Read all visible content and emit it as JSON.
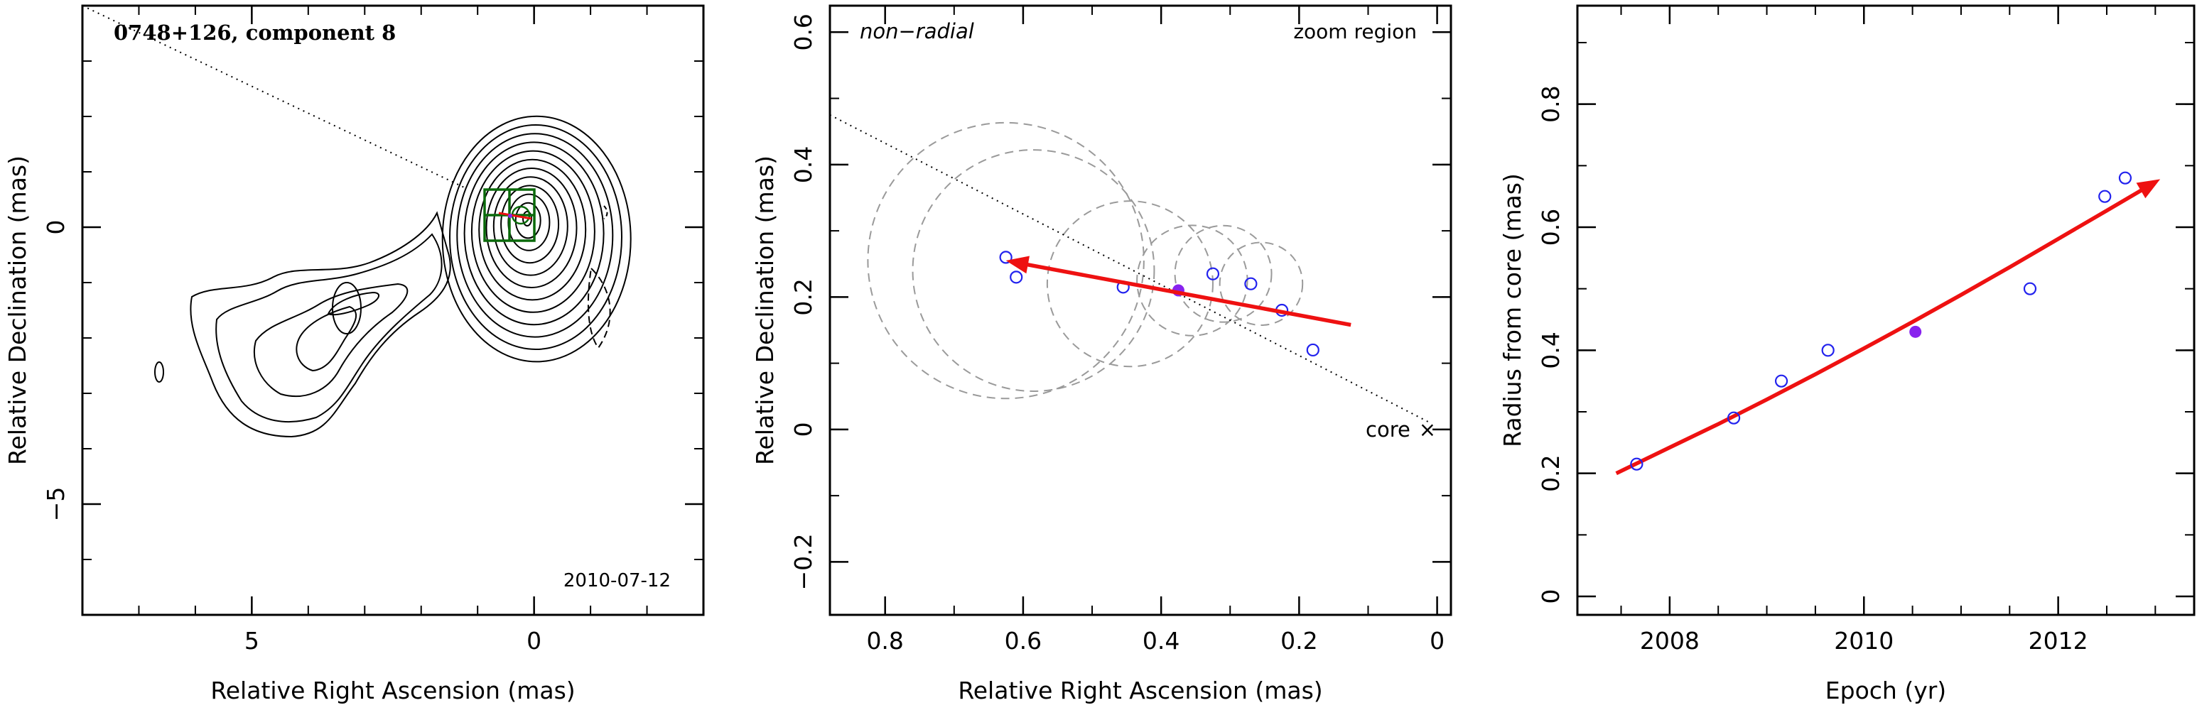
{
  "chart_data": [
    {
      "type": "scatter",
      "title": "0748+126, component 8",
      "date": "2010-07-12",
      "xlabel": "Relative Right Ascension (mas)",
      "ylabel": "Relative Declination (mas)",
      "xlim": [
        8,
        -3
      ],
      "ylim": [
        -7,
        4
      ],
      "xticks": [
        5,
        0
      ],
      "yticks": [
        0,
        -5
      ],
      "contour_map": true,
      "zoom_box_label": "zoom region",
      "direction_line": {
        "x": [
          8,
          1.2
        ],
        "y": [
          4,
          0.7
        ]
      }
    },
    {
      "type": "scatter",
      "title_left": "non−radial",
      "title_right": "zoom region",
      "xlabel": "Relative Right Ascension (mas)",
      "ylabel": "Relative Declination (mas)",
      "xlim": [
        0.88,
        -0.02
      ],
      "ylim": [
        -0.28,
        0.64
      ],
      "xticks": [
        0.8,
        0.6,
        0.4,
        0.2,
        0
      ],
      "yticks": [
        0.6,
        0.4,
        0.2,
        0,
        -0.2
      ],
      "core_label": "core",
      "core_marker": "×",
      "points": [
        {
          "x": 0.625,
          "y": 0.26
        },
        {
          "x": 0.61,
          "y": 0.23
        },
        {
          "x": 0.455,
          "y": 0.215
        },
        {
          "x": 0.325,
          "y": 0.235
        },
        {
          "x": 0.27,
          "y": 0.22
        },
        {
          "x": 0.225,
          "y": 0.18
        },
        {
          "x": 0.18,
          "y": 0.12
        }
      ],
      "highlight_point": {
        "x": 0.375,
        "y": 0.21
      },
      "arrow": {
        "from": [
          0.125,
          0.158
        ],
        "to": [
          0.625,
          0.255
        ]
      },
      "ellipses": [
        {
          "x": 0.625,
          "y": 0.255,
          "r": 0.2
        },
        {
          "x": 0.585,
          "y": 0.24,
          "r": 0.175
        },
        {
          "x": 0.445,
          "y": 0.22,
          "r": 0.12
        },
        {
          "x": 0.355,
          "y": 0.225,
          "r": 0.08
        },
        {
          "x": 0.31,
          "y": 0.235,
          "r": 0.07
        },
        {
          "x": 0.255,
          "y": 0.22,
          "r": 0.06
        }
      ],
      "direction_line": {
        "x": [
          0.88,
          0.01
        ],
        "y": [
          0.475,
          0.01
        ]
      }
    },
    {
      "type": "scatter",
      "xlabel": "Epoch (yr)",
      "ylabel": "Radius from core (mas)",
      "xlim": [
        2007.05,
        2013.4
      ],
      "ylim": [
        -0.03,
        0.96
      ],
      "xticks": [
        2008,
        2010,
        2012
      ],
      "yticks": [
        0,
        0.2,
        0.4,
        0.6,
        0.8
      ],
      "points": [
        {
          "x": 2007.66,
          "y": 0.215
        },
        {
          "x": 2008.66,
          "y": 0.29
        },
        {
          "x": 2009.15,
          "y": 0.35
        },
        {
          "x": 2009.63,
          "y": 0.4
        },
        {
          "x": 2011.71,
          "y": 0.5
        },
        {
          "x": 2012.48,
          "y": 0.65
        },
        {
          "x": 2012.69,
          "y": 0.68
        }
      ],
      "highlight_point": {
        "x": 2010.53,
        "y": 0.43
      },
      "fit_curve": {
        "x": [
          2007.45,
          2008.0,
          2008.5,
          2009.0,
          2009.5,
          2010.0,
          2010.5,
          2011.0,
          2011.5,
          2012.0,
          2012.5,
          2013.05
        ],
        "y": [
          0.2,
          0.242,
          0.28,
          0.32,
          0.361,
          0.403,
          0.446,
          0.49,
          0.535,
          0.581,
          0.627,
          0.678
        ]
      }
    }
  ]
}
